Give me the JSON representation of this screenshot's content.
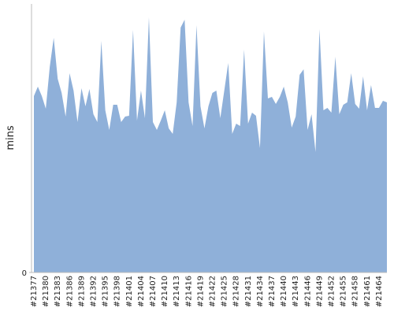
{
  "chart_data": {
    "type": "area",
    "ylabel": "mins",
    "color": "#8fb0d9",
    "categories": [
      "#21377",
      null,
      null,
      "#21380",
      null,
      null,
      "#21383",
      null,
      null,
      "#21386",
      null,
      null,
      "#21389",
      null,
      null,
      "#21392",
      null,
      null,
      "#21395",
      null,
      null,
      "#21398",
      null,
      null,
      "#21401",
      null,
      null,
      "#21404",
      null,
      null,
      "#21407",
      null,
      null,
      "#21410",
      null,
      null,
      "#21413",
      null,
      null,
      "#21416",
      null,
      null,
      "#21419",
      null,
      null,
      "#21422",
      null,
      null,
      "#21425",
      null,
      null,
      "#21428",
      null,
      null,
      "#21431",
      null,
      null,
      "#21434",
      null,
      null,
      "#21437",
      null,
      null,
      "#21440",
      null,
      null,
      "#21443",
      null,
      null,
      "#21446",
      null,
      null,
      "#21449",
      null,
      null,
      "#21452",
      null,
      null,
      "#21455",
      null,
      null,
      "#21458",
      null,
      null,
      "#21461",
      null,
      null,
      "#21464",
      null,
      null
    ],
    "values": [
      224,
      236,
      224,
      208,
      261,
      298,
      246,
      228,
      198,
      253,
      231,
      191,
      234,
      211,
      233,
      201,
      191,
      294,
      206,
      181,
      213,
      213,
      191,
      198,
      199,
      308,
      193,
      231,
      196,
      324,
      191,
      181,
      193,
      206,
      183,
      176,
      216,
      311,
      321,
      216,
      186,
      314,
      211,
      183,
      211,
      228,
      231,
      196,
      231,
      266,
      176,
      189,
      186,
      283,
      189,
      203,
      199,
      158,
      306,
      221,
      223,
      214,
      223,
      236,
      216,
      184,
      198,
      251,
      258,
      181,
      201,
      153,
      309,
      206,
      209,
      203,
      274,
      201,
      213,
      216,
      253,
      214,
      208,
      249,
      206,
      238,
      209,
      209,
      218,
      216
    ],
    "ylim": [
      0,
      341
    ],
    "yticks": [
      0
    ]
  }
}
